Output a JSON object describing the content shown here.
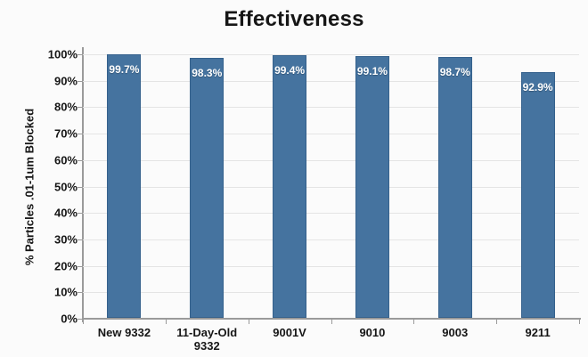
{
  "chart_data": {
    "type": "bar",
    "title": "Effectiveness",
    "xlabel": "",
    "ylabel": "% Particles .01-1um Blocked",
    "categories": [
      "New 9332",
      "11-Day-Old 9332",
      "9001V",
      "9010",
      "9003",
      "9211"
    ],
    "values": [
      99.7,
      98.3,
      99.4,
      99.1,
      98.7,
      92.9
    ],
    "data_labels": [
      "99.7%",
      "98.3%",
      "99.4%",
      "99.1%",
      "98.7%",
      "92.9%"
    ],
    "ylim": [
      0,
      100
    ],
    "ytick_values": [
      0,
      10,
      20,
      30,
      40,
      50,
      60,
      70,
      80,
      90,
      100
    ],
    "ytick_labels": [
      "0%",
      "10%",
      "20%",
      "30%",
      "40%",
      "50%",
      "60%",
      "70%",
      "80%",
      "90%",
      "100%"
    ],
    "grid": true,
    "legend": false,
    "colors": {
      "bar_fill": "#45739f",
      "bar_border": "#35618c",
      "gridline": "#e4e4e4",
      "axis": "#9a9a9a",
      "text": "#161616",
      "bar_label": "#ffffff",
      "background": "#fbfbfb"
    }
  }
}
